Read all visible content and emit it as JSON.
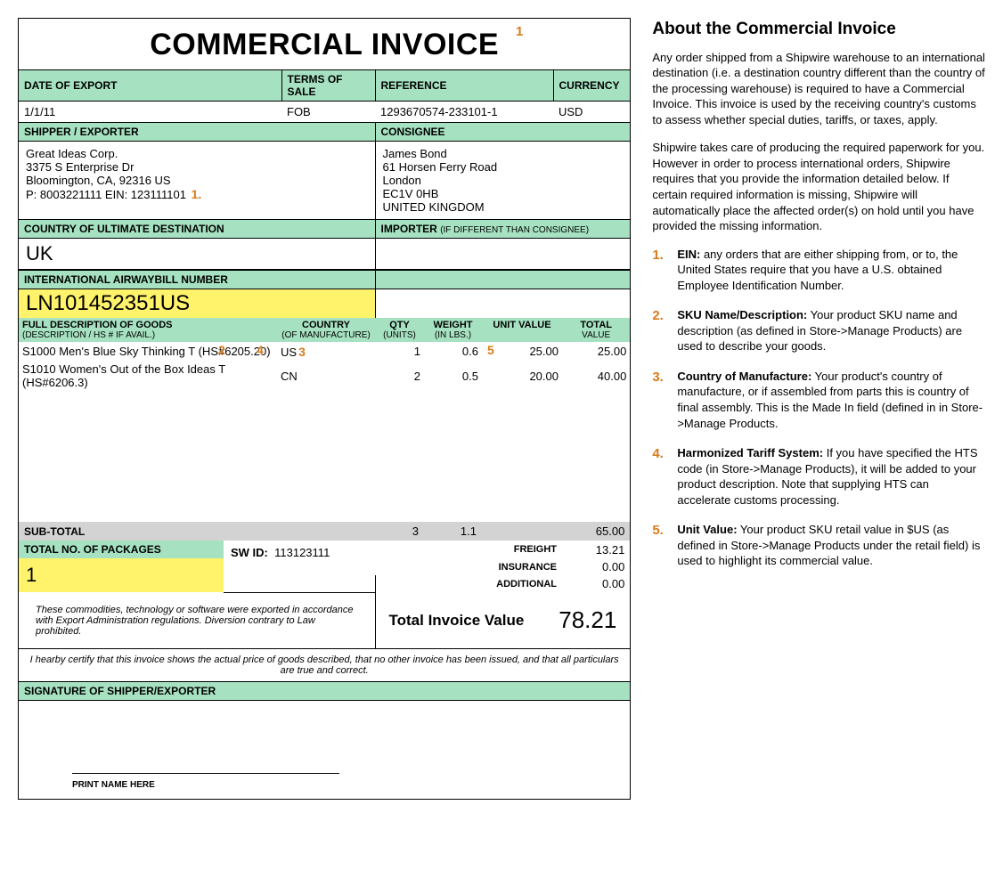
{
  "invoice": {
    "title": "COMMERCIAL INVOICE",
    "headers": {
      "date_of_export": "DATE OF EXPORT",
      "terms_of_sale": "TERMS OF SALE",
      "reference": "REFERENCE",
      "currency": "CURRENCY",
      "shipper_exporter": "SHIPPER / EXPORTER",
      "consignee": "CONSIGNEE",
      "country_ult_dest": "COUNTRY OF ULTIMATE DESTINATION",
      "importer": "IMPORTER",
      "importer_note": "(IF DIFFERENT THAN CONSIGNEE)",
      "awb": "INTERNATIONAL AIRWAYBILL NUMBER",
      "subtotal": "SUB-TOTAL",
      "total_no_packages": "TOTAL NO. OF PACKAGES",
      "freight": "FREIGHT",
      "insurance": "INSURANCE",
      "additional": "ADDITIONAL",
      "total_invoice_value": "Total Invoice Value",
      "signature": "SIGNATURE OF SHIPPER/EXPORTER",
      "print_name": "PRINT NAME HERE",
      "sw_id_label": "SW ID:"
    },
    "line_headers": {
      "description": "FULL DESCRIPTION OF GOODS",
      "description_sub": "(DESCRIPTION / HS # IF AVAIL.)",
      "country": "COUNTRY",
      "country_sub": "(OF MANUFACTURE)",
      "qty": "QTY",
      "qty_sub": "(UNITS)",
      "weight": "WEIGHT",
      "weight_sub": "(IN LBS.)",
      "unit_value": "UNIT VALUE",
      "total_value": "TOTAL",
      "total_value_sub": "VALUE"
    },
    "values": {
      "date_of_export": "1/1/11",
      "terms_of_sale": "FOB",
      "reference": "1293670574-233101-1",
      "currency": "USD",
      "country_ult_dest": "UK",
      "awb": "LN101452351US",
      "sw_id": "113123111",
      "total_packages": "1",
      "subtotal_qty": "3",
      "subtotal_weight": "1.1",
      "subtotal_value": "65.00",
      "freight": "13.21",
      "insurance": "0.00",
      "additional": "0.00",
      "total_invoice_value": "78.21"
    },
    "shipper": {
      "l1": "Great Ideas Corp.",
      "l2": "3375 S Enterprise Dr",
      "l3": "Bloomington, CA, 92316 US",
      "l4": "P: 8003221111 EIN: 123111101"
    },
    "consignee": {
      "l1": "James Bond",
      "l2": "61 Horsen Ferry Road",
      "l3": "London",
      "l4": "EC1V 0HB",
      "l5": "UNITED KINGDOM"
    },
    "lines": [
      {
        "desc": "S1000 Men's Blue Sky Thinking T (HS#6205.20)",
        "country": "US",
        "qty": "1",
        "weight": "0.6",
        "unit_value": "25.00",
        "total": "25.00"
      },
      {
        "desc": "S1010 Women's Out of the Box Ideas T (HS#6206.3)",
        "country": "CN",
        "qty": "2",
        "weight": "0.5",
        "unit_value": "20.00",
        "total": "40.00"
      }
    ],
    "export_note": "These commodities, technology or software were exported in accordance with Export Administration regulations.  Diversion contrary to Law prohibited.",
    "certify": "I hearby certify that this invoice shows the actual price of goods described, that no other invoice has been issued, and that all particulars are true and correct."
  },
  "annotations": {
    "a1": "1",
    "a1dot": "1.",
    "a2": "2",
    "a3": "3",
    "a4": "4",
    "a5": "5"
  },
  "sidebar": {
    "title": "About the Commercial Invoice",
    "p1": "Any order shipped from a Shipwire warehouse to an international destination (i.e. a destination country different than the country of the processing warehouse) is required to have a Commercial Invoice. This invoice is used by the receiving country's customs to assess whether special duties, tariffs, or taxes, apply.",
    "p2": "Shipwire takes care of producing the required paperwork for you. However in order to process international orders, Shipwire requires that you provide the information detailed below. If certain required information is missing, Shipwire will automatically place the affected order(s) on hold until you have provided the missing information.",
    "items": [
      {
        "num": "1.",
        "term": "EIN:",
        "text": " any orders that are either shipping from, or to, the United States require that you have a U.S. obtained Employee Identification Number."
      },
      {
        "num": "2.",
        "term": "SKU Name/Description:",
        "text": " Your product SKU name and description (as defined in Store->Manage Products) are used to describe your goods."
      },
      {
        "num": "3.",
        "term": "Country of Manufacture:",
        "text": " Your product's country of manufacture, or if assembled from parts this is country of final assembly. This is the Made In field (defined in in Store->Manage Products."
      },
      {
        "num": "4.",
        "term": "Harmonized Tariff System:",
        "text": " If you have specified the HTS code (in Store->Manage Products), it will be added to your product description. Note that supplying HTS can accelerate customs processing."
      },
      {
        "num": "5.",
        "term": "Unit Value:",
        "text": " Your product SKU retail value in $US (as defined in Store->Manage Products under the retail field) is used to highlight its commercial value."
      }
    ]
  },
  "colors": {
    "header_green": "#a6e2c1",
    "highlight_yellow": "#fff36b",
    "subtotal_gray": "#d3d3d3",
    "annotation_orange": "#d97b1a"
  }
}
